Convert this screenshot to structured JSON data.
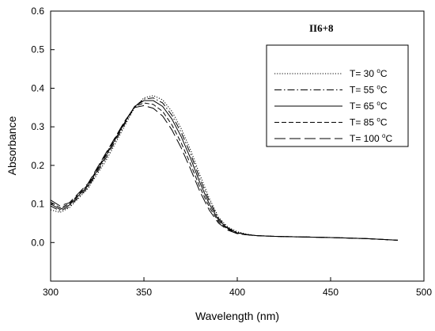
{
  "chart_data": {
    "type": "line",
    "xlabel": "Wavelength (nm)",
    "ylabel": "Absorbance",
    "xlim": [
      300,
      500
    ],
    "ylim": [
      -0.1,
      0.6
    ],
    "xticks": [
      300,
      350,
      400,
      450,
      500
    ],
    "yticks": [
      0.0,
      0.1,
      0.2,
      0.3,
      0.4,
      0.5,
      0.6
    ],
    "xtick_labels": [
      "300",
      "350",
      "400",
      "450",
      "500"
    ],
    "ytick_labels": [
      "0.0",
      "0.1",
      "0.2",
      "0.3",
      "0.4",
      "0.5",
      "0.6"
    ],
    "annotation": "II6+8",
    "grid": false,
    "legend_position": "top-right",
    "legend_degree_symbol": "o",
    "legend_unit": "C",
    "series": [
      {
        "name": "T= 30 ",
        "dash": "dotted",
        "x": [
          300,
          305,
          310,
          320,
          330,
          340,
          345,
          350,
          355,
          360,
          365,
          370,
          375,
          380,
          385,
          390,
          395,
          400,
          405,
          410,
          420,
          430,
          450,
          470,
          486
        ],
        "y": [
          0.085,
          0.078,
          0.09,
          0.14,
          0.215,
          0.305,
          0.35,
          0.375,
          0.381,
          0.37,
          0.34,
          0.295,
          0.24,
          0.175,
          0.115,
          0.065,
          0.04,
          0.028,
          0.022,
          0.018,
          0.016,
          0.015,
          0.013,
          0.01,
          0.006
        ]
      },
      {
        "name": "T= 55 ",
        "dash": "dashdot",
        "x": [
          300,
          305,
          310,
          320,
          330,
          340,
          345,
          350,
          355,
          360,
          365,
          370,
          375,
          380,
          385,
          390,
          395,
          400,
          405,
          410,
          420,
          430,
          450,
          470,
          486
        ],
        "y": [
          0.095,
          0.082,
          0.093,
          0.143,
          0.222,
          0.31,
          0.352,
          0.372,
          0.375,
          0.362,
          0.33,
          0.285,
          0.23,
          0.165,
          0.108,
          0.062,
          0.038,
          0.026,
          0.021,
          0.018,
          0.016,
          0.015,
          0.013,
          0.01,
          0.006
        ]
      },
      {
        "name": "T= 65 ",
        "dash": "solid",
        "x": [
          300,
          305,
          310,
          320,
          330,
          340,
          345,
          350,
          355,
          360,
          365,
          370,
          375,
          380,
          385,
          390,
          395,
          400,
          405,
          410,
          420,
          430,
          450,
          470,
          486
        ],
        "y": [
          0.1,
          0.086,
          0.097,
          0.147,
          0.228,
          0.314,
          0.353,
          0.368,
          0.368,
          0.353,
          0.32,
          0.274,
          0.218,
          0.155,
          0.1,
          0.058,
          0.036,
          0.025,
          0.021,
          0.018,
          0.016,
          0.015,
          0.013,
          0.01,
          0.006
        ]
      },
      {
        "name": "T= 85 ",
        "dash": "dashed",
        "x": [
          300,
          305,
          310,
          320,
          330,
          340,
          345,
          350,
          355,
          360,
          365,
          370,
          375,
          380,
          385,
          390,
          395,
          400,
          405,
          410,
          420,
          430,
          450,
          470,
          486
        ],
        "y": [
          0.105,
          0.09,
          0.1,
          0.15,
          0.232,
          0.316,
          0.352,
          0.362,
          0.358,
          0.34,
          0.305,
          0.258,
          0.203,
          0.143,
          0.092,
          0.054,
          0.034,
          0.024,
          0.02,
          0.018,
          0.016,
          0.015,
          0.013,
          0.01,
          0.006
        ]
      },
      {
        "name": "T= 100 ",
        "dash": "longdash",
        "x": [
          300,
          305,
          310,
          320,
          330,
          340,
          345,
          350,
          355,
          360,
          365,
          370,
          375,
          380,
          385,
          390,
          395,
          400,
          405,
          410,
          420,
          430,
          450,
          470,
          486
        ],
        "y": [
          0.11,
          0.095,
          0.103,
          0.153,
          0.235,
          0.317,
          0.35,
          0.355,
          0.348,
          0.328,
          0.292,
          0.245,
          0.19,
          0.132,
          0.084,
          0.05,
          0.032,
          0.023,
          0.02,
          0.018,
          0.016,
          0.015,
          0.013,
          0.01,
          0.006
        ]
      }
    ]
  }
}
